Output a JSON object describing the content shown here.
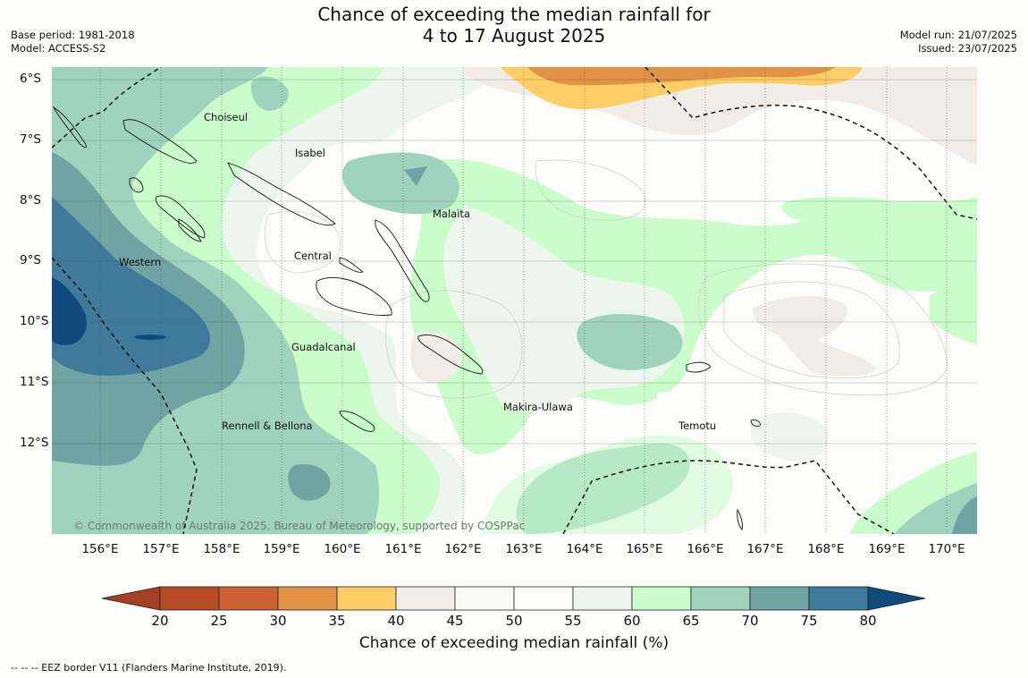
{
  "header": {
    "title_line1": "Chance of exceeding the median rainfall for",
    "title_line2": "4 to 17 August 2025",
    "base_period": "Base period: 1981-2018",
    "model": "Model: ACCESS-S2",
    "model_run": "Model run: 21/07/2025",
    "issued": "Issued: 23/07/2025"
  },
  "map": {
    "lat_labels": [
      "6°S",
      "7°S",
      "8°S",
      "9°S",
      "10°S",
      "11°S",
      "12°S"
    ],
    "lon_labels": [
      "156°E",
      "157°E",
      "158°E",
      "159°E",
      "160°E",
      "161°E",
      "162°E",
      "163°E",
      "164°E",
      "165°E",
      "166°E",
      "167°E",
      "168°E",
      "169°E",
      "170°E"
    ],
    "places": {
      "choiseul": "Choiseul",
      "isabel": "Isabel",
      "malaita": "Malaita",
      "western": "Western",
      "central": "Central",
      "guadalcanal": "Guadalcanal",
      "makira": "Makira-Ulawa",
      "rennell": "Rennell & Bellona",
      "temotu": "Temotu"
    },
    "copyright": "© Commonwealth of Australia 2025, Bureau of Meteorology, supported by COSPPac"
  },
  "colorbar": {
    "labels": [
      "20",
      "25",
      "30",
      "35",
      "40",
      "45",
      "50",
      "55",
      "60",
      "65",
      "70",
      "75",
      "80"
    ],
    "colors": [
      "#a33f22",
      "#b54c25",
      "#cc6030",
      "#e19244",
      "#fece66",
      "#f1ece6",
      "#fafbf9",
      "#fcfdfb",
      "#edf6ec",
      "#cbfccb",
      "#9fd3bd",
      "#6fa3a4",
      "#407a9b",
      "#124a7e"
    ],
    "title": "Chance of exceeding median rainfall (%)"
  },
  "footnote": "--  --  -- EEZ border V11 (Flanders Marine Institute, 2019)."
}
